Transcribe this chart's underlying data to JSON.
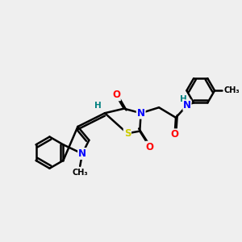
{
  "bg_color": "#efefef",
  "atom_colors": {
    "O": "#ff0000",
    "N": "#0000ff",
    "S": "#cccc00",
    "H": "#008080",
    "C": "#000000"
  },
  "bond_color": "#000000",
  "bond_width": 1.8,
  "figsize": [
    3.0,
    3.0
  ],
  "dpi": 100,
  "xlim": [
    0,
    10
  ],
  "ylim": [
    0,
    10
  ]
}
